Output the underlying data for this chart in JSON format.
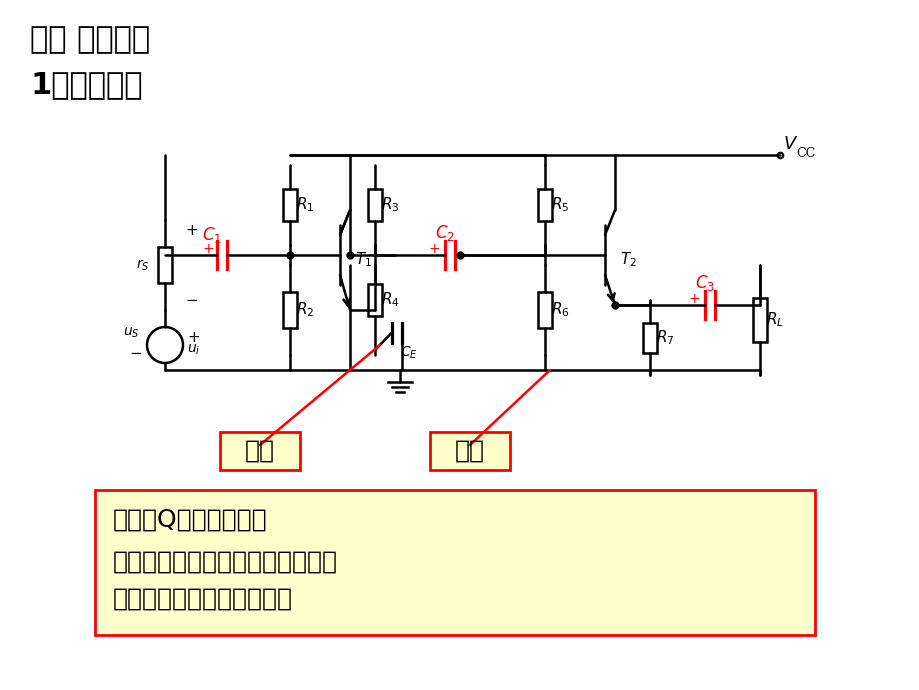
{
  "title1": "一、 耦合方式",
  "title2": "1、阻容耦合",
  "bg_color": "#ffffff",
  "circuit_color": "#000000",
  "red_color": "#ff0000",
  "label_共发": "共发",
  "label_共集": "共集",
  "box_fill": "#ffffcc",
  "box_border": "#ff0000",
  "text_优点": "优点：Q点相互独立。",
  "text_缺点1": "缺点：不能放大变化缓慢的信号，",
  "text_缺点2": "低频特性差，不能集成化。",
  "vcc_label": "V",
  "vcc_sub": "CC"
}
